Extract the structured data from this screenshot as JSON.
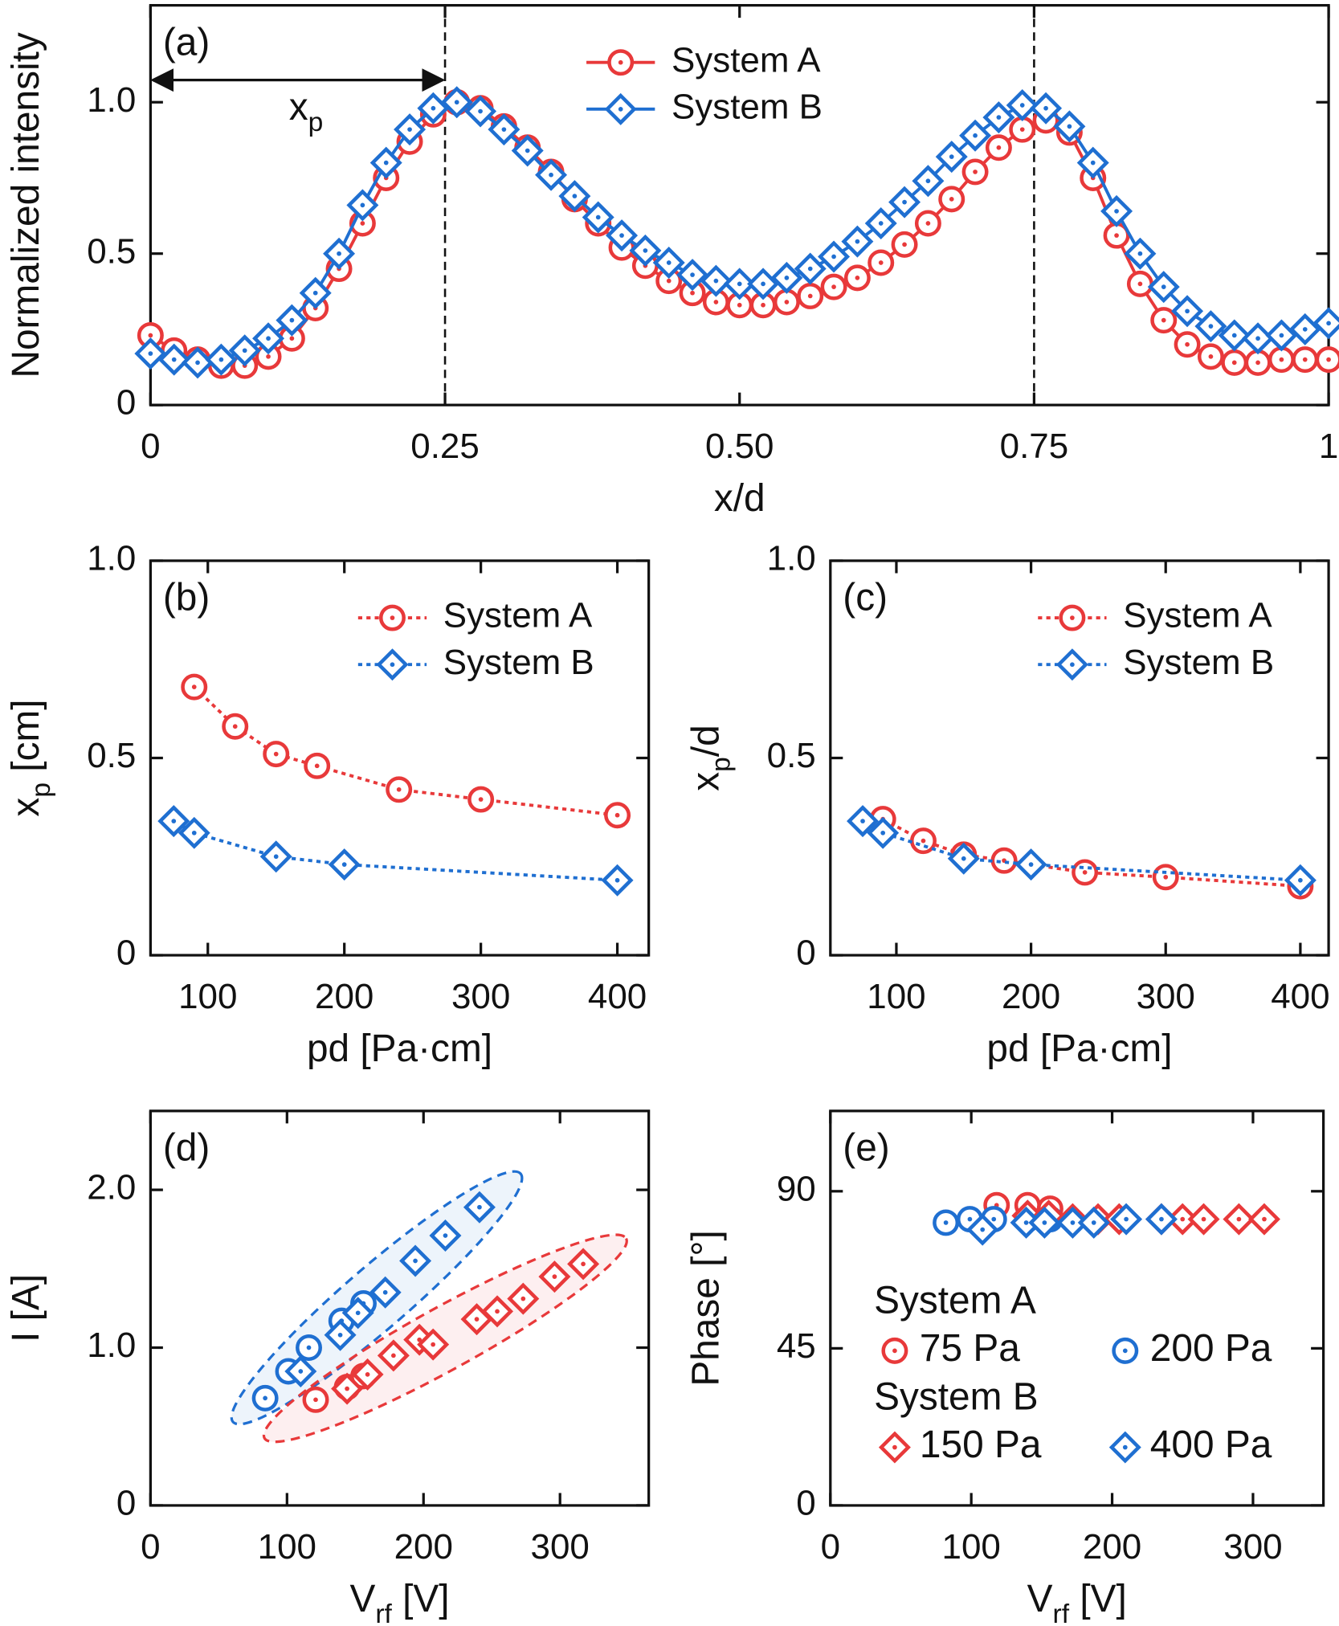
{
  "chart_data": [
    {
      "type": "line",
      "panel_label": "(a)",
      "xlabel": [
        {
          "text": "x/d"
        }
      ],
      "ylabel": [
        {
          "text": "Normalized intensity"
        }
      ],
      "xlim": [
        0,
        1
      ],
      "ylim": [
        0,
        1.32
      ],
      "xticks": [
        0,
        0.25,
        {
          "value": 0.5,
          "label": "0.50"
        },
        0.75,
        1
      ],
      "yticks": [
        0,
        0.5,
        {
          "value": 1,
          "label": "1.0"
        }
      ],
      "vlines": [
        0.25,
        0.75
      ],
      "annotation": [
        {
          "text": "x"
        },
        {
          "text": "p",
          "sub": true
        }
      ],
      "legend": "upper center",
      "x": [
        0,
        0.02,
        0.04,
        0.06,
        0.08,
        0.1,
        0.12,
        0.14,
        0.16,
        0.18,
        0.2,
        0.22,
        0.24,
        0.26,
        0.28,
        0.3,
        0.32,
        0.34,
        0.36,
        0.38,
        0.4,
        0.42,
        0.44,
        0.46,
        0.48,
        0.5,
        0.52,
        0.54,
        0.56,
        0.58,
        0.6,
        0.62,
        0.64,
        0.66,
        0.68,
        0.7,
        0.72,
        0.74,
        0.76,
        0.78,
        0.8,
        0.82,
        0.84,
        0.86,
        0.88,
        0.9,
        0.92,
        0.94,
        0.96,
        0.98,
        1
      ],
      "series": [
        {
          "name": "System A",
          "color": "#e8393a",
          "marker": "circle",
          "line": "solid",
          "values": [
            0.23,
            0.18,
            0.15,
            0.13,
            0.13,
            0.16,
            0.22,
            0.32,
            0.45,
            0.6,
            0.75,
            0.87,
            0.96,
            1.0,
            0.98,
            0.92,
            0.85,
            0.77,
            0.68,
            0.6,
            0.52,
            0.46,
            0.41,
            0.37,
            0.34,
            0.33,
            0.33,
            0.34,
            0.36,
            0.39,
            0.42,
            0.47,
            0.53,
            0.6,
            0.68,
            0.77,
            0.85,
            0.91,
            0.94,
            0.9,
            0.75,
            0.56,
            0.4,
            0.28,
            0.2,
            0.16,
            0.14,
            0.14,
            0.15,
            0.15,
            0.15
          ]
        },
        {
          "name": "System B",
          "color": "#1f6fd1",
          "marker": "diamond",
          "line": "solid",
          "values": [
            0.17,
            0.15,
            0.14,
            0.15,
            0.18,
            0.22,
            0.28,
            0.37,
            0.5,
            0.66,
            0.8,
            0.91,
            0.98,
            1.0,
            0.97,
            0.91,
            0.84,
            0.76,
            0.69,
            0.62,
            0.56,
            0.51,
            0.47,
            0.43,
            0.41,
            0.4,
            0.4,
            0.42,
            0.45,
            0.49,
            0.54,
            0.6,
            0.67,
            0.74,
            0.82,
            0.89,
            0.95,
            0.99,
            0.98,
            0.92,
            0.8,
            0.64,
            0.5,
            0.39,
            0.31,
            0.26,
            0.23,
            0.22,
            0.23,
            0.25,
            0.27
          ]
        }
      ]
    },
    {
      "type": "line",
      "panel_label": "(b)",
      "xlabel": [
        {
          "text": "pd [Pa·cm]"
        }
      ],
      "ylabel": [
        {
          "text": "x"
        },
        {
          "text": "p",
          "sub": true
        },
        {
          "text": " [cm]"
        }
      ],
      "xlim": [
        58,
        423
      ],
      "ylim": [
        0,
        1
      ],
      "xticks": [
        100,
        200,
        300,
        400
      ],
      "yticks": [
        0,
        0.5,
        {
          "value": 1,
          "label": "1.0"
        }
      ],
      "legend": "upper right",
      "series": [
        {
          "name": "System A",
          "color": "#e8393a",
          "marker": "circle",
          "line": "dotted",
          "x": [
            90,
            120,
            150,
            180,
            240,
            300,
            400
          ],
          "values": [
            0.68,
            0.58,
            0.51,
            0.48,
            0.42,
            0.395,
            0.355
          ]
        },
        {
          "name": "System B",
          "color": "#1f6fd1",
          "marker": "diamond",
          "line": "dotted",
          "x": [
            75,
            90,
            150,
            200,
            400
          ],
          "values": [
            0.34,
            0.31,
            0.25,
            0.23,
            0.19
          ]
        }
      ]
    },
    {
      "type": "line",
      "panel_label": "(c)",
      "xlabel": [
        {
          "text": "pd [Pa·cm]"
        }
      ],
      "ylabel": [
        {
          "text": "x"
        },
        {
          "text": "p",
          "sub": true
        },
        {
          "text": "/d"
        }
      ],
      "xlim": [
        51,
        421
      ],
      "ylim": [
        0,
        1
      ],
      "xticks": [
        100,
        200,
        300,
        400
      ],
      "yticks": [
        0,
        0.5,
        {
          "value": 1,
          "label": "1.0"
        }
      ],
      "legend": "upper right",
      "series": [
        {
          "name": "System A",
          "color": "#e8393a",
          "marker": "circle",
          "line": "dotted",
          "x": [
            90,
            120,
            150,
            180,
            240,
            300,
            400
          ],
          "values": [
            0.345,
            0.29,
            0.255,
            0.24,
            0.21,
            0.198,
            0.175
          ]
        },
        {
          "name": "System B",
          "color": "#1f6fd1",
          "marker": "diamond",
          "line": "dotted",
          "x": [
            75,
            90,
            150,
            200,
            400
          ],
          "values": [
            0.34,
            0.31,
            0.245,
            0.23,
            0.19
          ]
        }
      ]
    },
    {
      "type": "scatter",
      "panel_label": "(d)",
      "xlabel": [
        {
          "text": "V"
        },
        {
          "text": "rf",
          "sub": true
        },
        {
          "text": " [V]"
        }
      ],
      "ylabel": [
        {
          "text": "I [A]"
        }
      ],
      "xlim": [
        0,
        365
      ],
      "ylim": [
        0,
        2.5
      ],
      "xticks": [
        0,
        100,
        200,
        300
      ],
      "yticks": [
        0,
        {
          "value": 1,
          "label": "1.0"
        },
        {
          "value": 2,
          "label": "2.0"
        }
      ],
      "series": [
        {
          "color": "#e8393a",
          "marker": "circle",
          "x": [
            121,
            144,
            156
          ],
          "values": [
            0.67,
            0.75,
            0.82
          ]
        },
        {
          "color": "#1f6fd1",
          "marker": "circle",
          "x": [
            84,
            101,
            116,
            140,
            156
          ],
          "values": [
            0.68,
            0.85,
            1.0,
            1.17,
            1.28
          ]
        },
        {
          "color": "#e8393a",
          "marker": "diamond",
          "x": [
            144,
            159,
            178,
            197,
            207,
            239,
            254,
            273,
            296,
            317
          ],
          "values": [
            0.74,
            0.83,
            0.95,
            1.05,
            1.02,
            1.18,
            1.23,
            1.31,
            1.45,
            1.53
          ]
        },
        {
          "color": "#1f6fd1",
          "marker": "diamond",
          "x": [
            110,
            139,
            152,
            172,
            194,
            216,
            241
          ],
          "values": [
            0.85,
            1.08,
            1.22,
            1.35,
            1.55,
            1.71,
            1.89
          ]
        }
      ]
    },
    {
      "type": "scatter",
      "panel_label": "(e)",
      "xlabel": [
        {
          "text": "V"
        },
        {
          "text": "rf",
          "sub": true
        },
        {
          "text": " [V]"
        }
      ],
      "ylabel": [
        {
          "text": "Phase [°]"
        }
      ],
      "xlim": [
        0,
        350
      ],
      "ylim": [
        0,
        113
      ],
      "xticks": [
        0,
        100,
        200,
        300
      ],
      "yticks": [
        0,
        45,
        90
      ],
      "legend": "lower left",
      "legend_groups": [
        "System A",
        "System B"
      ],
      "series": [
        {
          "name": "75 Pa",
          "color": "#e8393a",
          "marker": "circle",
          "x": [
            118,
            140,
            156
          ],
          "values": [
            86,
            86,
            85
          ]
        },
        {
          "name": "200 Pa",
          "color": "#1f6fd1",
          "marker": "circle",
          "x": [
            82,
            99,
            116,
            140,
            156
          ],
          "values": [
            81,
            82,
            82,
            82,
            82
          ]
        },
        {
          "name": "150 Pa",
          "color": "#e8393a",
          "marker": "diamond",
          "x": [
            140,
            155,
            172,
            190,
            205,
            235,
            250,
            265,
            290,
            308
          ],
          "values": [
            83,
            83,
            82,
            82,
            82,
            82,
            82,
            82,
            82,
            82
          ]
        },
        {
          "name": "400 Pa",
          "color": "#1f6fd1",
          "marker": "diamond",
          "x": [
            108,
            139,
            152,
            172,
            187,
            210,
            235
          ],
          "values": [
            79,
            81,
            81,
            81,
            81,
            82,
            82
          ]
        }
      ]
    }
  ]
}
